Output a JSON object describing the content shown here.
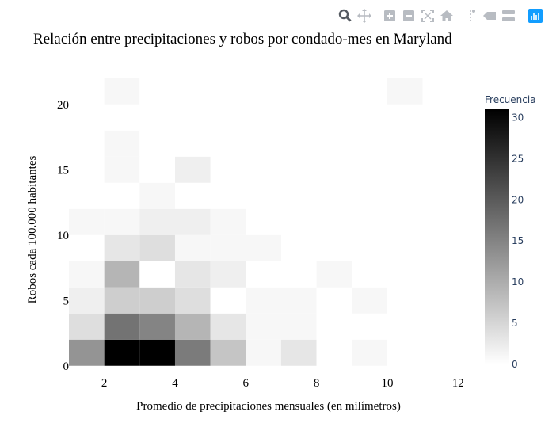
{
  "modebar": {
    "buttons": [
      {
        "name": "zoom-icon",
        "active": true
      },
      {
        "name": "pan-icon",
        "active": false
      },
      {
        "name": "zoom-in-icon",
        "active": false
      },
      {
        "name": "zoom-out-icon",
        "active": false
      },
      {
        "name": "autoscale-icon",
        "active": false
      },
      {
        "name": "reset-axes-icon",
        "active": false
      },
      {
        "name": "spike-lines-icon",
        "active": false
      },
      {
        "name": "hover-closest-icon",
        "active": false
      },
      {
        "name": "hover-compare-icon",
        "active": false
      },
      {
        "name": "plotly-logo-icon",
        "active": false
      }
    ]
  },
  "chart_data": {
    "type": "heatmap",
    "title": "Relación entre precipitaciones y robos por condado-mes en Maryland",
    "xlabel": "Promedio de precipitaciones mensuales (en milímetros)",
    "ylabel": "Robos cada 100.000 habitantes",
    "xlim": [
      1,
      12.8
    ],
    "ylim": [
      -0.5,
      21.5
    ],
    "xticks": [
      "2",
      "4",
      "6",
      "8",
      "10",
      "12"
    ],
    "yticks": [
      "0",
      "5",
      "10",
      "15",
      "20"
    ],
    "x_bin_edges": [
      1,
      2,
      3,
      4,
      5,
      6,
      7,
      8,
      9,
      10,
      11,
      12
    ],
    "y_bin_edges": [
      0,
      2,
      4,
      6,
      8,
      10,
      12,
      14,
      16,
      18,
      20,
      22
    ],
    "z": [
      [
        13,
        31,
        31,
        16,
        7,
        1,
        3,
        0,
        1,
        0,
        0
      ],
      [
        4,
        17,
        15,
        9,
        3,
        1,
        1,
        0,
        0,
        0,
        0
      ],
      [
        2,
        6,
        6,
        4,
        0,
        1,
        1,
        0,
        1,
        0,
        0
      ],
      [
        1,
        9,
        0,
        3,
        2,
        0,
        0,
        1,
        0,
        0,
        0
      ],
      [
        0,
        3,
        4,
        1,
        1,
        1,
        0,
        0,
        0,
        0,
        0
      ],
      [
        1,
        1,
        2,
        2,
        1,
        0,
        0,
        0,
        0,
        0,
        0
      ],
      [
        0,
        0,
        1,
        0,
        0,
        0,
        0,
        0,
        0,
        0,
        0
      ],
      [
        0,
        1,
        0,
        2,
        0,
        0,
        0,
        0,
        0,
        0,
        0
      ],
      [
        0,
        1,
        0,
        0,
        0,
        0,
        0,
        0,
        0,
        0,
        0
      ],
      [
        0,
        0,
        0,
        0,
        0,
        0,
        0,
        0,
        0,
        0,
        0
      ],
      [
        0,
        1,
        0,
        0,
        0,
        0,
        0,
        0,
        0,
        1,
        0
      ]
    ],
    "colorbar": {
      "title": "Frecuencia",
      "range": [
        0,
        31
      ],
      "ticks": [
        "0",
        "5",
        "10",
        "15",
        "20",
        "25",
        "30"
      ]
    },
    "colorscale": [
      "#ffffff",
      "#000000"
    ],
    "grid": false,
    "legend": "none"
  }
}
